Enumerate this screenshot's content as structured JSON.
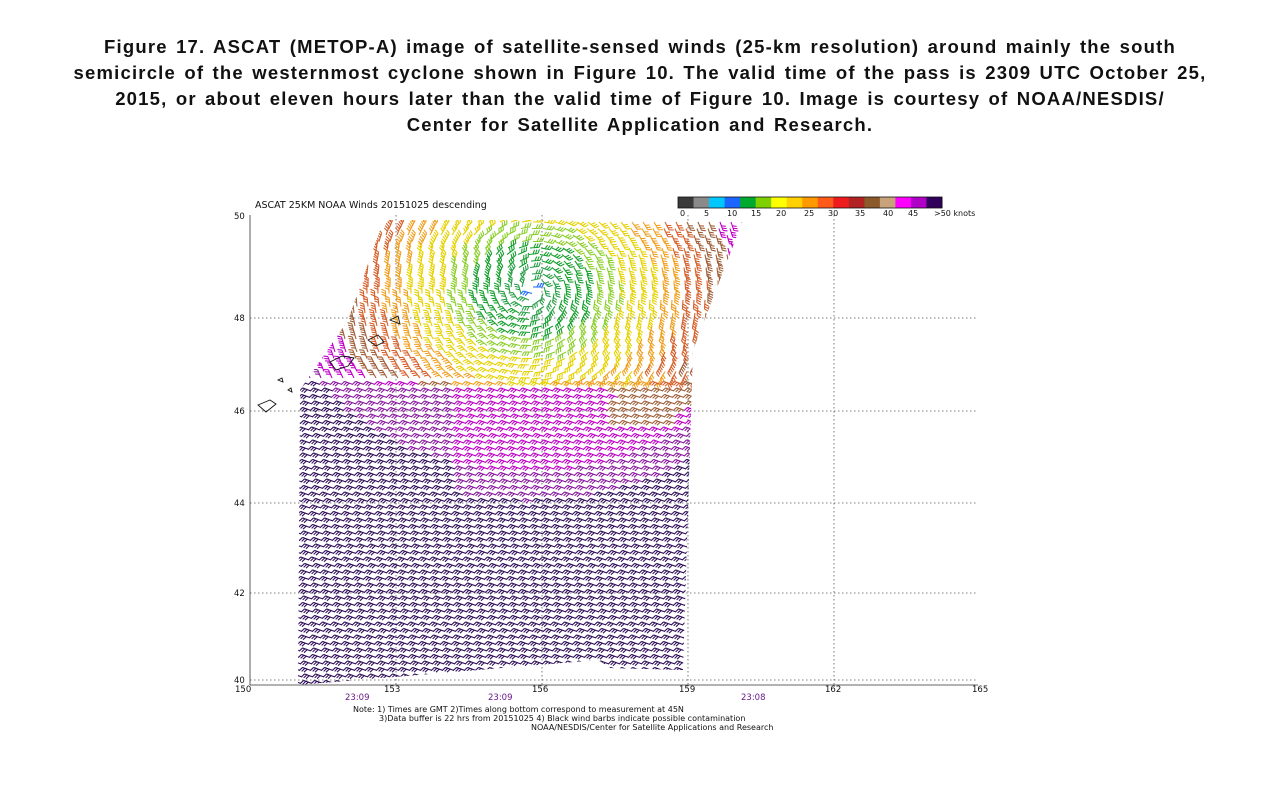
{
  "caption": {
    "line1": "Figure 17.  ASCAT (METOP-A) image of satellite-sensed winds (25-km resolution) around mainly the south",
    "line2": "semicircle of the westernmost cyclone shown in Figure 10.  The valid time of the pass is 2309 UTC October 25,",
    "line3": "2015, or about eleven hours later than the valid time of  Figure 10.  Image is courtesy of NOAA/NESDIS/",
    "line4": "Center for Satellite Application and Research."
  },
  "map": {
    "title": "ASCAT 25KM NOAA Winds 20151025 descending",
    "lat_ticks": [
      "50",
      "48",
      "46",
      "44",
      "42",
      "40"
    ],
    "lon_ticks": [
      "150",
      "153",
      "156",
      "159",
      "162",
      "165"
    ],
    "pass_times": [
      "23:09",
      "23:09",
      "23:08"
    ],
    "legend": {
      "labels": [
        "0",
        "5",
        "10",
        "15",
        "20",
        "25",
        "30",
        "35",
        "40",
        "45",
        ">50 knots"
      ],
      "colors": [
        "#3a3a3a",
        "#8a8a8a",
        "#00c8ff",
        "#1a66ff",
        "#00aa2e",
        "#7fd000",
        "#ffff00",
        "#ffd100",
        "#ff9900",
        "#ff5a1a",
        "#ee1c1c",
        "#b22222",
        "#8b5a2b",
        "#c8a27a",
        "#ff00ff",
        "#b000c8",
        "#30005a"
      ]
    },
    "notes": [
      "Note: 1) Times are GMT 2)Times along bottom correspond to measurement at 45N",
      "3)Data buffer is 22 hrs from 20151025 4) Black wind barbs indicate possible contamination",
      "NOAA/NESDIS/Center for Satellite Applications and Research"
    ]
  }
}
